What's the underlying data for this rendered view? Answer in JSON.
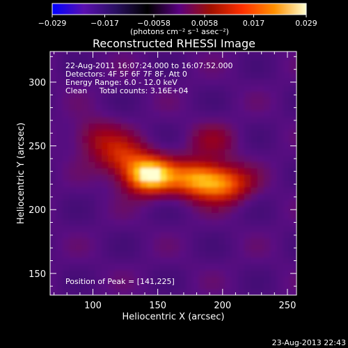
{
  "chart_data": {
    "type": "heatmap",
    "title": "Reconstructed RHESSI Image",
    "xlabel": "Heliocentric X (arcsec)",
    "ylabel": "Heliocentric Y (arcsec)",
    "xlim": [
      67,
      257
    ],
    "ylim": [
      133,
      324
    ],
    "x_ticks": [
      "100",
      "150",
      "200",
      "250"
    ],
    "y_ticks": [
      "150",
      "200",
      "250",
      "300"
    ],
    "colorbar": {
      "min": -0.029,
      "max": 0.029,
      "tick_labels": [
        "−0.029",
        "−0.017",
        "−0.0058",
        "0.0058",
        "0.017",
        "0.029"
      ],
      "units": "(photons cm⁻² s⁻¹ asec⁻²)",
      "palette_stops": [
        "#0000ff",
        "#5a10b0",
        "#2a1060",
        "#000000",
        "#5a0080",
        "#a01000",
        "#ff3000",
        "#ff9000",
        "#ffffd0"
      ]
    },
    "annotations": [
      "22-Aug-2011 16:07:24.000 to 16:07:52.000",
      "Detectors: 4F 5F 6F 7F 8F, Att 0",
      "Energy Range: 6.0 - 12.0 keV",
      "Clean     Total counts: 3.16E+04"
    ],
    "peak_label": "Position of Peak = [141,225]",
    "peak": [
      141,
      225
    ],
    "sources": [
      {
        "x": 141,
        "y": 225,
        "value": 0.029
      },
      {
        "x": 178,
        "y": 222,
        "value": 0.02
      },
      {
        "x": 200,
        "y": 218,
        "value": 0.017
      },
      {
        "x": 120,
        "y": 240,
        "value": 0.012
      },
      {
        "x": 100,
        "y": 255,
        "value": 0.008
      },
      {
        "x": 190,
        "y": 252,
        "value": 0.006
      }
    ],
    "background_level": -0.0058
  },
  "footer": {
    "timestamp": "23-Aug-2013 22:43"
  }
}
